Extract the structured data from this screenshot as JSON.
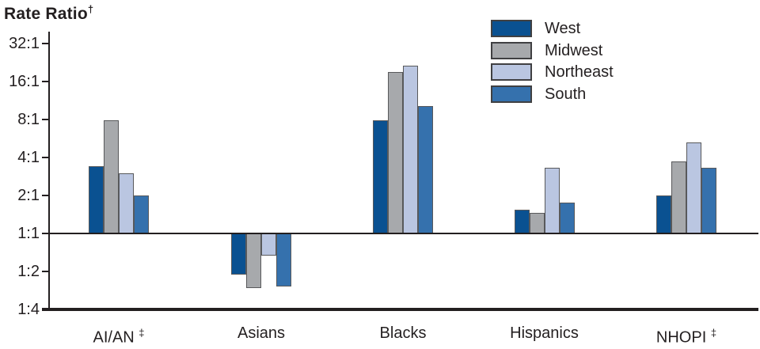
{
  "title": {
    "text": "Rate Ratio",
    "sup": "†"
  },
  "chart_data": {
    "type": "bar",
    "title": "Rate Ratio†",
    "yscale": "log2",
    "ylim": [
      0.25,
      32
    ],
    "grid": false,
    "baseline_value": 1,
    "legend_position": "top-right",
    "categories": [
      "AI/AN",
      "Asians",
      "Blacks",
      "Hispanics",
      "NHOPI"
    ],
    "category_sups": [
      "‡",
      "",
      "",
      "",
      "‡"
    ],
    "y_ticks": [
      {
        "label": "32:1",
        "value": 32
      },
      {
        "label": "16:1",
        "value": 16
      },
      {
        "label": "8:1",
        "value": 8
      },
      {
        "label": "4:1",
        "value": 4
      },
      {
        "label": "2:1",
        "value": 2
      },
      {
        "label": "1:1",
        "value": 1
      },
      {
        "label": "1:2",
        "value": 0.5
      },
      {
        "label": "1:4",
        "value": 0.25
      }
    ],
    "series": [
      {
        "name": "West",
        "color": "#0A5191",
        "values": [
          3.4,
          0.47,
          7.9,
          1.55,
          2.0
        ]
      },
      {
        "name": "Midwest",
        "color": "#A7A9AC",
        "values": [
          7.9,
          0.37,
          19.0,
          1.45,
          3.7
        ]
      },
      {
        "name": "Northeast",
        "color": "#BAC6E1",
        "values": [
          3.0,
          0.67,
          21.5,
          3.3,
          5.3
        ]
      },
      {
        "name": "South",
        "color": "#3571AD",
        "values": [
          2.0,
          0.38,
          10.3,
          1.75,
          3.3
        ]
      }
    ]
  },
  "colors": {
    "text": "#231F20",
    "axis": "#231F20",
    "bar_border": "#58595B"
  }
}
